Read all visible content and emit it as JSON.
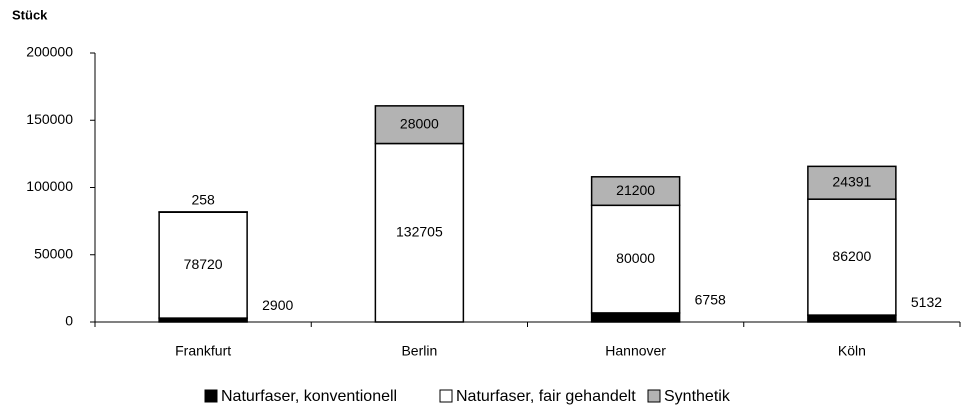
{
  "chart_data": {
    "type": "stacked_bar",
    "y_axis_label": "Stück",
    "categories": [
      "Frankfurt",
      "Berlin",
      "Hannover",
      "Köln"
    ],
    "series": [
      {
        "name": "Naturfaser, konventionell",
        "color": "#000000",
        "values": [
          2900,
          null,
          6758,
          5132
        ]
      },
      {
        "name": "Naturfaser, fair gehandelt",
        "color": "#ffffff",
        "values": [
          78720,
          132705,
          80000,
          86200
        ]
      },
      {
        "name": "Synthetik",
        "color": "#b3b3b3",
        "values": [
          258,
          28000,
          21200,
          24391
        ]
      }
    ],
    "ylim": [
      0,
      200000
    ],
    "yticks": [
      0,
      50000,
      100000,
      150000,
      200000
    ],
    "legend": "bottom"
  }
}
